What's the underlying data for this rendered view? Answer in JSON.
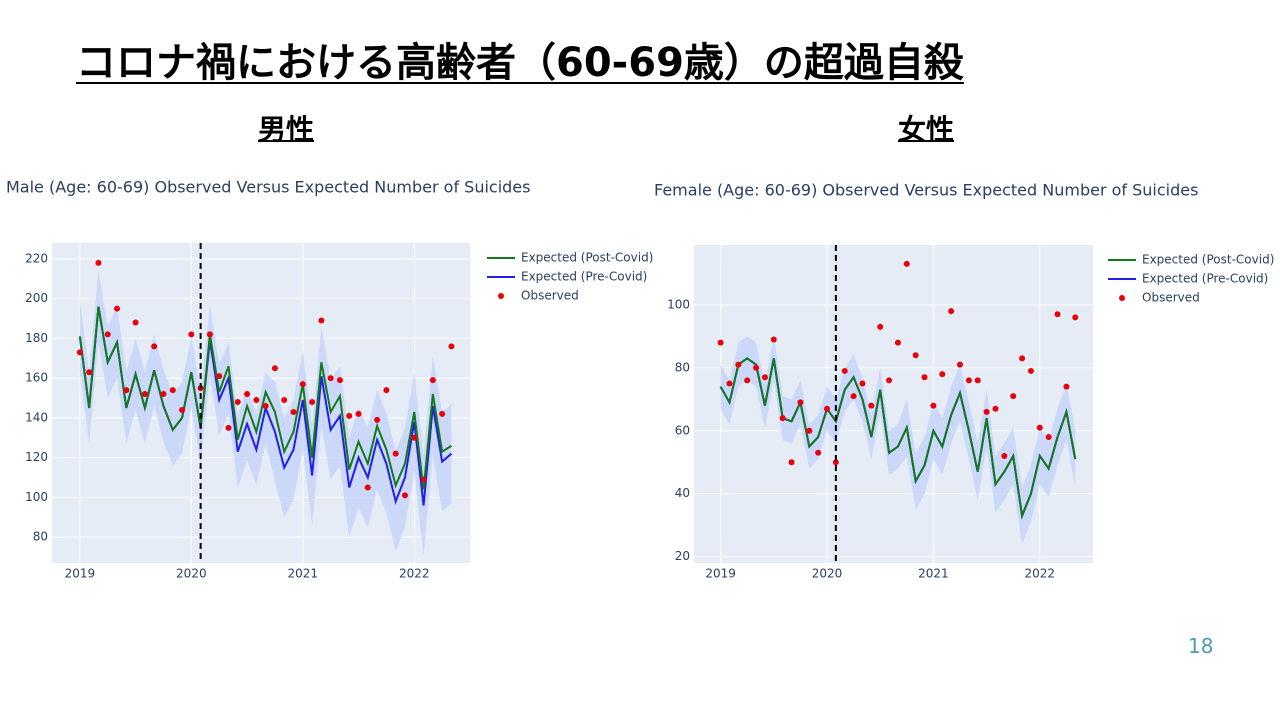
{
  "title": "コロナ禍における高齢者（60-69歳）の超過自殺",
  "page_number": "18",
  "chart_data": [
    {
      "type": "line",
      "panel_label": "男性",
      "title": "Male (Age: 60-69) Observed Versus Expected Number of Suicides",
      "x": [
        "2019-01",
        "2019-02",
        "2019-03",
        "2019-04",
        "2019-05",
        "2019-06",
        "2019-07",
        "2019-08",
        "2019-09",
        "2019-10",
        "2019-11",
        "2019-12",
        "2020-01",
        "2020-02",
        "2020-03",
        "2020-04",
        "2020-05",
        "2020-06",
        "2020-07",
        "2020-08",
        "2020-09",
        "2020-10",
        "2020-11",
        "2020-12",
        "2021-01",
        "2021-02",
        "2021-03",
        "2021-04",
        "2021-05",
        "2021-06",
        "2021-07",
        "2021-08",
        "2021-09",
        "2021-10",
        "2021-11",
        "2021-12",
        "2022-01",
        "2022-02",
        "2022-03",
        "2022-04",
        "2022-05"
      ],
      "xlim": [
        "2018-10",
        "2022-07"
      ],
      "xticks": [
        "2019",
        "2020",
        "2021",
        "2022"
      ],
      "ylim": [
        67,
        228
      ],
      "yticks": [
        80,
        100,
        120,
        140,
        160,
        180,
        200,
        220
      ],
      "grid": true,
      "legend": "right",
      "vline": "2020-02",
      "band": {
        "color": "#c5d3fa",
        "lower": [
          163,
          127,
          178,
          150,
          160,
          127,
          144,
          127,
          146,
          128,
          116,
          122,
          145,
          117,
          161,
          131,
          142,
          105,
          119,
          106,
          127,
          108,
          90,
          99,
          124,
          86,
          136,
          109,
          116,
          80,
          95,
          85,
          104,
          92,
          73,
          85,
          113,
          71,
          121,
          93,
          97
        ],
        "upper": [
          199,
          163,
          214,
          186,
          196,
          163,
          180,
          163,
          182,
          164,
          152,
          158,
          181,
          153,
          197,
          167,
          178,
          141,
          155,
          142,
          163,
          158,
          140,
          149,
          174,
          136,
          186,
          159,
          166,
          130,
          145,
          135,
          154,
          142,
          123,
          135,
          163,
          121,
          171,
          143,
          147
        ]
      },
      "series": [
        {
          "name": "Expected (Post-Covid)",
          "color": "#137a1b",
          "mode": "lines",
          "values": [
            181,
            145,
            196,
            168,
            178,
            145,
            162,
            145,
            164,
            146,
            134,
            140,
            163,
            135,
            182,
            153,
            166,
            129,
            146,
            133,
            153,
            143,
            123,
            133,
            157,
            120,
            168,
            143,
            151,
            114,
            128,
            117,
            136,
            124,
            106,
            117,
            143,
            104,
            152,
            123,
            126
          ]
        },
        {
          "name": "Expected (Pre-Covid)",
          "color": "#1f1fe6",
          "mode": "lines",
          "values": [
            181,
            145,
            196,
            168,
            178,
            145,
            162,
            145,
            164,
            146,
            134,
            140,
            163,
            135,
            179,
            149,
            160,
            123,
            137,
            124,
            145,
            133,
            115,
            124,
            149,
            111,
            161,
            134,
            141,
            105,
            120,
            110,
            129,
            117,
            98,
            110,
            138,
            96,
            146,
            118,
            122
          ]
        },
        {
          "name": "Observed",
          "color": "#e8000b",
          "mode": "markers",
          "values": [
            173,
            163,
            218,
            182,
            195,
            154,
            188,
            152,
            176,
            152,
            154,
            144,
            182,
            155,
            182,
            161,
            135,
            148,
            152,
            149,
            146,
            165,
            149,
            143,
            157,
            148,
            189,
            160,
            159,
            141,
            142,
            105,
            139,
            154,
            122,
            101,
            130,
            109,
            159,
            142,
            176
          ]
        }
      ]
    },
    {
      "type": "line",
      "panel_label": "女性",
      "title": "Female (Age: 60-69) Observed Versus Expected Number of Suicides",
      "x": [
        "2019-01",
        "2019-02",
        "2019-03",
        "2019-04",
        "2019-05",
        "2019-06",
        "2019-07",
        "2019-08",
        "2019-09",
        "2019-10",
        "2019-11",
        "2019-12",
        "2020-01",
        "2020-02",
        "2020-03",
        "2020-04",
        "2020-05",
        "2020-06",
        "2020-07",
        "2020-08",
        "2020-09",
        "2020-10",
        "2020-11",
        "2020-12",
        "2021-01",
        "2021-02",
        "2021-03",
        "2021-04",
        "2021-05",
        "2021-06",
        "2021-07",
        "2021-08",
        "2021-09",
        "2021-10",
        "2021-11",
        "2021-12",
        "2022-01",
        "2022-02",
        "2022-03",
        "2022-04",
        "2022-05"
      ],
      "xlim": [
        "2018-10",
        "2022-07"
      ],
      "xticks": [
        "2019",
        "2020",
        "2021",
        "2022"
      ],
      "ylim": [
        18,
        119
      ],
      "yticks": [
        20,
        40,
        60,
        80,
        100
      ],
      "grid": true,
      "legend": "right",
      "vline": "2020-02",
      "band": {
        "color": "#c5d3fa",
        "lower": [
          67,
          62,
          74,
          76,
          74,
          61,
          76,
          57,
          56,
          62,
          48,
          51,
          60,
          56,
          66,
          70,
          63,
          51,
          66,
          46,
          48,
          52,
          35,
          40,
          51,
          46,
          56,
          63,
          51,
          38,
          55,
          34,
          38,
          43,
          24,
          31,
          43,
          39,
          49,
          57,
          42
        ],
        "upper": [
          81,
          76,
          88,
          90,
          88,
          75,
          90,
          71,
          70,
          76,
          62,
          65,
          74,
          70,
          80,
          84,
          77,
          65,
          80,
          60,
          62,
          70,
          53,
          58,
          69,
          64,
          74,
          81,
          69,
          56,
          73,
          52,
          56,
          61,
          42,
          49,
          61,
          57,
          67,
          75,
          60
        ]
      },
      "series": [
        {
          "name": "Expected (Post-Covid)",
          "color": "#137a1b",
          "mode": "lines",
          "values": [
            74,
            69,
            81,
            83,
            81,
            68,
            83,
            64,
            63,
            69,
            55,
            58,
            67,
            63,
            73,
            77,
            70,
            58,
            73,
            53,
            55,
            61,
            44,
            49,
            60,
            55,
            65,
            72,
            60,
            47,
            64,
            43,
            47,
            52,
            33,
            40,
            52,
            48,
            58,
            66,
            51
          ]
        },
        {
          "name": "Expected (Pre-Covid)",
          "color": "#1f1fe6",
          "mode": "lines",
          "values": [
            74,
            69,
            81,
            83,
            81,
            68,
            83,
            64,
            63,
            69,
            55,
            58,
            67,
            63,
            73,
            77,
            70,
            58,
            73,
            53,
            55,
            61,
            44,
            49,
            60,
            55,
            65,
            72,
            60,
            47,
            64,
            43,
            47,
            52,
            33,
            40,
            52,
            48,
            58,
            66,
            51
          ]
        },
        {
          "name": "Observed",
          "color": "#e8000b",
          "mode": "markers",
          "values": [
            88,
            75,
            81,
            76,
            80,
            77,
            89,
            64,
            50,
            69,
            60,
            53,
            67,
            50,
            79,
            71,
            75,
            68,
            93,
            76,
            88,
            113,
            84,
            77,
            68,
            78,
            98,
            81,
            76,
            76,
            66,
            67,
            52,
            71,
            83,
            79,
            61,
            58,
            97,
            74,
            96
          ]
        }
      ]
    }
  ]
}
